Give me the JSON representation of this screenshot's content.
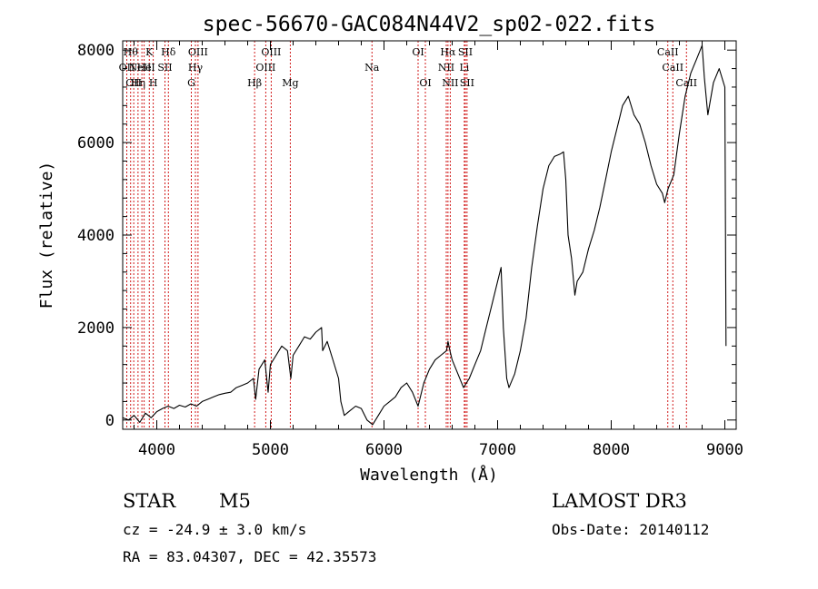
{
  "chart_data": {
    "type": "line",
    "title": "spec-56670-GAC084N44V2_sp02-022.fits",
    "xlabel": "Wavelength (Å)",
    "ylabel": "Flux (relative)",
    "xlim": [
      3700,
      9100
    ],
    "ylim": [
      -200,
      8200
    ],
    "xticks": [
      4000,
      5000,
      6000,
      7000,
      8000,
      9000
    ],
    "yticks": [
      0,
      2000,
      4000,
      6000,
      8000
    ],
    "tick_labels_x": [
      "4000",
      "5000",
      "6000",
      "7000",
      "8000",
      "9000"
    ],
    "tick_labels_y": [
      "0",
      "2000",
      "4000",
      "6000",
      "8000"
    ],
    "series": [
      {
        "name": "spectrum",
        "x": [
          3700,
          3750,
          3800,
          3850,
          3900,
          3950,
          4000,
          4050,
          4100,
          4150,
          4200,
          4250,
          4300,
          4350,
          4400,
          4450,
          4500,
          4550,
          4600,
          4650,
          4700,
          4750,
          4800,
          4850,
          4870,
          4900,
          4950,
          4980,
          5000,
          5050,
          5100,
          5150,
          5180,
          5200,
          5250,
          5300,
          5350,
          5400,
          5450,
          5460,
          5500,
          5550,
          5600,
          5620,
          5650,
          5700,
          5750,
          5800,
          5850,
          5900,
          5950,
          6000,
          6050,
          6100,
          6150,
          6200,
          6250,
          6300,
          6350,
          6400,
          6450,
          6500,
          6550,
          6563,
          6580,
          6600,
          6650,
          6700,
          6750,
          6800,
          6850,
          6900,
          6950,
          7000,
          7030,
          7050,
          7080,
          7100,
          7150,
          7200,
          7250,
          7300,
          7350,
          7400,
          7450,
          7500,
          7550,
          7580,
          7600,
          7620,
          7650,
          7680,
          7700,
          7750,
          7800,
          7850,
          7900,
          7950,
          8000,
          8050,
          8100,
          8150,
          8200,
          8250,
          8300,
          8350,
          8400,
          8450,
          8470,
          8500,
          8550,
          8600,
          8650,
          8700,
          8750,
          8800,
          8820,
          8850,
          8900,
          8950,
          9000,
          9010
        ],
        "y": [
          50,
          0,
          100,
          -50,
          150,
          50,
          180,
          250,
          300,
          250,
          320,
          280,
          350,
          300,
          400,
          450,
          500,
          550,
          580,
          600,
          700,
          750,
          800,
          900,
          450,
          1100,
          1300,
          600,
          1200,
          1400,
          1600,
          1500,
          900,
          1400,
          1600,
          1800,
          1750,
          1900,
          2000,
          1500,
          1700,
          1300,
          900,
          400,
          100,
          200,
          300,
          250,
          0,
          -100,
          100,
          300,
          400,
          500,
          700,
          800,
          600,
          300,
          800,
          1100,
          1300,
          1400,
          1500,
          1700,
          1500,
          1300,
          1000,
          700,
          900,
          1200,
          1500,
          2000,
          2500,
          3000,
          3300,
          2000,
          900,
          700,
          1000,
          1500,
          2200,
          3300,
          4200,
          5000,
          5500,
          5700,
          5750,
          5800,
          5200,
          4000,
          3500,
          2700,
          3000,
          3200,
          3700,
          4100,
          4600,
          5200,
          5800,
          6300,
          6800,
          7000,
          6600,
          6400,
          6000,
          5500,
          5100,
          4900,
          4700,
          5000,
          5300,
          6200,
          7000,
          7500,
          7800,
          8100,
          7400,
          6600,
          7300,
          7600,
          7200,
          1600
        ]
      }
    ],
    "spectral_lines": [
      {
        "x": 3736,
        "label": "OII",
        "row": 2
      },
      {
        "x": 3770,
        "label": "Hθ",
        "row": 1
      },
      {
        "x": 3797,
        "label": "OII",
        "row": 3
      },
      {
        "x": 3835,
        "label": "Hη",
        "row": 3
      },
      {
        "x": 3869,
        "label": "NeIII",
        "row": 2
      },
      {
        "x": 3889,
        "label": "He",
        "row": 2
      },
      {
        "x": 3934,
        "label": "K",
        "row": 1
      },
      {
        "x": 3969,
        "label": "H",
        "row": 3
      },
      {
        "x": 4072,
        "label": "SII",
        "row": 2
      },
      {
        "x": 4102,
        "label": "Hδ",
        "row": 1
      },
      {
        "x": 4304,
        "label": "G",
        "row": 3
      },
      {
        "x": 4340,
        "label": "Hγ",
        "row": 2
      },
      {
        "x": 4363,
        "label": "OIII",
        "row": 1
      },
      {
        "x": 4861,
        "label": "Hβ",
        "row": 3
      },
      {
        "x": 4959,
        "label": "OIII",
        "row": 2
      },
      {
        "x": 5007,
        "label": "OIII",
        "row": 1
      },
      {
        "x": 5175,
        "label": "Mg",
        "row": 3
      },
      {
        "x": 5894,
        "label": "Na",
        "row": 2
      },
      {
        "x": 6300,
        "label": "OI",
        "row": 1
      },
      {
        "x": 6364,
        "label": "OI",
        "row": 3
      },
      {
        "x": 6548,
        "label": "NII",
        "row": 2
      },
      {
        "x": 6563,
        "label": "Hα",
        "row": 1
      },
      {
        "x": 6583,
        "label": "NII",
        "row": 3
      },
      {
        "x": 6707,
        "label": "Li",
        "row": 2
      },
      {
        "x": 6716,
        "label": "SII",
        "row": 1
      },
      {
        "x": 6731,
        "label": "SII",
        "row": 3
      },
      {
        "x": 8498,
        "label": "CaII",
        "row": 1
      },
      {
        "x": 8542,
        "label": "CaII",
        "row": 2
      },
      {
        "x": 8662,
        "label": "CaII",
        "row": 3
      }
    ]
  },
  "info": {
    "object_class": "STAR",
    "subclass": "M5",
    "survey": "LAMOST DR3",
    "redshift": "cz = -24.9 ± 3.0 km/s",
    "obs_date": "Obs-Date: 20140112",
    "coords": "RA =  83.04307, DEC =  42.35573"
  },
  "colors": {
    "line": "#000000",
    "marker": "#cc0000",
    "axes": "#000000"
  }
}
